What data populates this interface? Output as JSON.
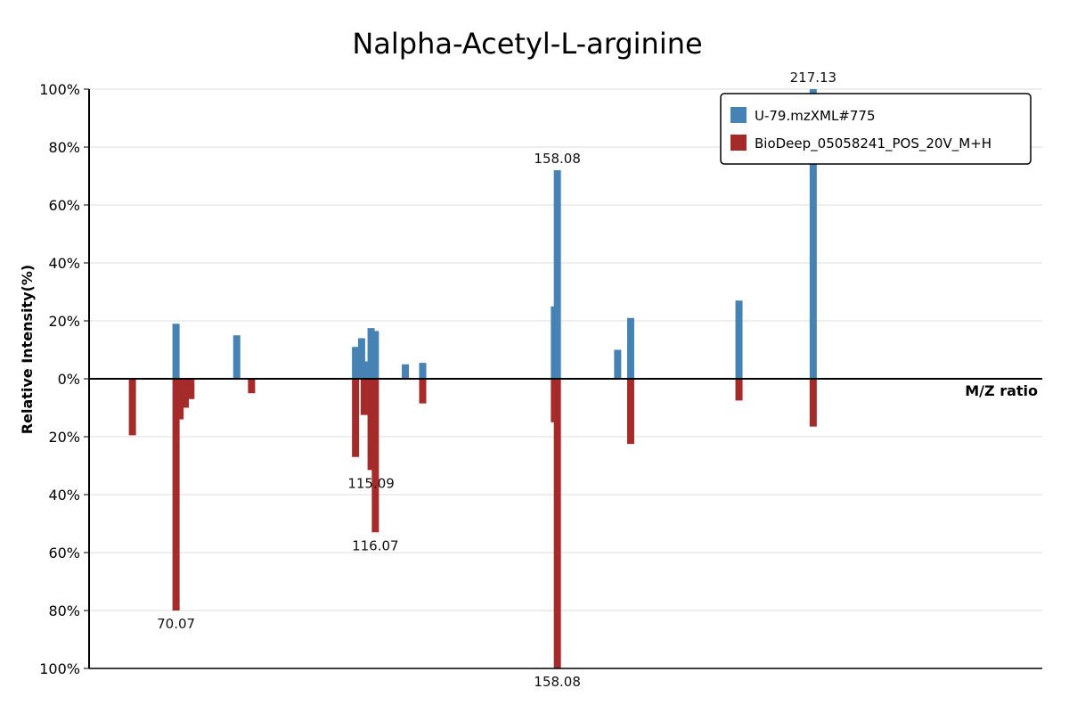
{
  "chart_data": {
    "type": "bar",
    "title": "Nalpha-Acetyl-L-arginine",
    "xlabel": "M/Z ratio",
    "ylabel": "Relative Intensity(%)",
    "x_range": [
      50,
      270
    ],
    "y_ticks": [
      "100%",
      "80%",
      "60%",
      "40%",
      "20%",
      "0%",
      "20%",
      "40%",
      "60%",
      "80%",
      "100%"
    ],
    "grid": true,
    "legend": {
      "position": "top-right"
    },
    "series": [
      {
        "name": "U-79.mzXML#775",
        "color": "#4682b4",
        "direction": "up",
        "peaks": [
          {
            "mz": 70.07,
            "intensity": 19
          },
          {
            "mz": 84.08,
            "intensity": 15
          },
          {
            "mz": 111.5,
            "intensity": 11
          },
          {
            "mz": 112.9,
            "intensity": 14
          },
          {
            "mz": 114.3,
            "intensity": 6
          },
          {
            "mz": 115.09,
            "intensity": 17.5
          },
          {
            "mz": 116.07,
            "intensity": 16.5
          },
          {
            "mz": 123.0,
            "intensity": 5
          },
          {
            "mz": 127.0,
            "intensity": 5.5
          },
          {
            "mz": 157.4,
            "intensity": 25
          },
          {
            "mz": 158.08,
            "intensity": 72,
            "label": "158.08"
          },
          {
            "mz": 172.0,
            "intensity": 10
          },
          {
            "mz": 175.0,
            "intensity": 21
          },
          {
            "mz": 200.0,
            "intensity": 27
          },
          {
            "mz": 217.13,
            "intensity": 100,
            "label": "217.13"
          }
        ]
      },
      {
        "name": "BioDeep_05058241_POS_20V_M+H",
        "color": "#a52a2a",
        "direction": "down",
        "peaks": [
          {
            "mz": 60.0,
            "intensity": 19.5
          },
          {
            "mz": 70.07,
            "intensity": 80,
            "label": "70.07"
          },
          {
            "mz": 71.0,
            "intensity": 14
          },
          {
            "mz": 72.2,
            "intensity": 10
          },
          {
            "mz": 73.5,
            "intensity": 7
          },
          {
            "mz": 87.5,
            "intensity": 5
          },
          {
            "mz": 111.5,
            "intensity": 27
          },
          {
            "mz": 113.5,
            "intensity": 12.5
          },
          {
            "mz": 115.09,
            "intensity": 31.5,
            "label": "115.09"
          },
          {
            "mz": 116.07,
            "intensity": 53,
            "label": "116.07"
          },
          {
            "mz": 127.0,
            "intensity": 8.5
          },
          {
            "mz": 157.4,
            "intensity": 15
          },
          {
            "mz": 158.08,
            "intensity": 100,
            "label": "158.08"
          },
          {
            "mz": 175.0,
            "intensity": 22.5
          },
          {
            "mz": 200.0,
            "intensity": 7.5
          },
          {
            "mz": 217.13,
            "intensity": 16.5
          }
        ]
      }
    ]
  }
}
